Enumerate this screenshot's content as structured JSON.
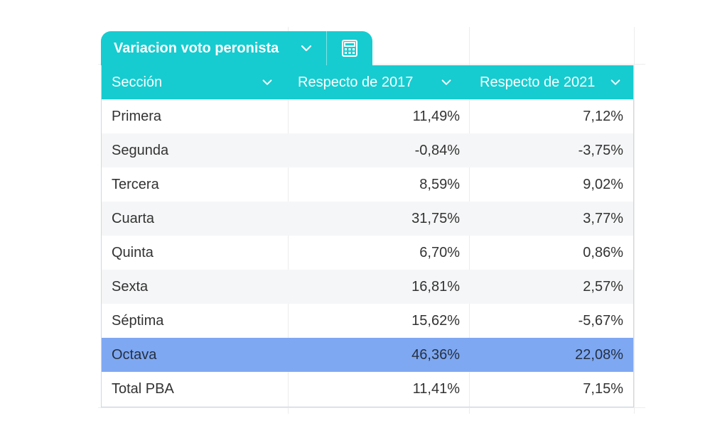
{
  "tab": {
    "title": "Variacion voto peronista"
  },
  "icons": {
    "tab_dropdown": "chevron-down-icon",
    "calculator": "calculator-icon",
    "column_dropdown": "chevron-down-icon"
  },
  "colors": {
    "header": "#16ccd0",
    "highlight_row": "#7fa8f2",
    "alt_row": "#f5f6f7"
  },
  "table": {
    "columns": [
      "Sección",
      "Respecto de 2017",
      "Respecto de 2021"
    ],
    "rows": [
      [
        "Primera",
        "11,49%",
        "7,12%"
      ],
      [
        "Segunda",
        "-0,84%",
        "-3,75%"
      ],
      [
        "Tercera",
        "8,59%",
        "9,02%"
      ],
      [
        "Cuarta",
        "31,75%",
        "3,77%"
      ],
      [
        "Quinta",
        "6,70%",
        "0,86%"
      ],
      [
        "Sexta",
        "16,81%",
        "2,57%"
      ],
      [
        "Séptima",
        "15,62%",
        "-5,67%"
      ],
      [
        "Octava",
        "46,36%",
        "22,08%"
      ],
      [
        "Total PBA",
        "11,41%",
        "7,15%"
      ]
    ],
    "highlighted_row": "Octava"
  }
}
